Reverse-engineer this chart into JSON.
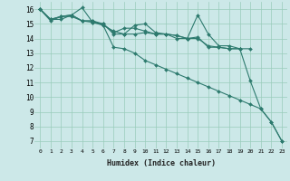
{
  "xlabel": "Humidex (Indice chaleur)",
  "ylabel": "",
  "bg_color": "#cce8e8",
  "line_color": "#2d7a6e",
  "grid_color": "#99ccbb",
  "xlim": [
    -0.5,
    23.5
  ],
  "ylim": [
    6.5,
    16.5
  ],
  "yticks": [
    7,
    8,
    9,
    10,
    11,
    12,
    13,
    14,
    15,
    16
  ],
  "xticks": [
    0,
    1,
    2,
    3,
    4,
    5,
    6,
    7,
    8,
    9,
    10,
    11,
    12,
    13,
    14,
    15,
    16,
    17,
    18,
    19,
    20,
    21,
    22,
    23
  ],
  "series": [
    [
      16.0,
      15.3,
      15.3,
      15.6,
      16.1,
      15.1,
      15.0,
      14.3,
      14.3,
      14.9,
      15.0,
      14.4,
      14.3,
      14.2,
      14.0,
      15.6,
      14.3,
      13.5,
      13.5,
      13.3,
      11.1,
      9.2,
      8.3,
      7.0
    ],
    [
      16.0,
      15.3,
      15.5,
      15.6,
      15.2,
      15.2,
      15.0,
      14.4,
      14.7,
      14.7,
      14.5,
      14.3,
      14.3,
      14.0,
      14.0,
      14.1,
      13.4,
      13.4,
      13.3,
      13.3,
      13.3,
      null,
      null,
      null
    ],
    [
      16.0,
      15.3,
      15.5,
      15.6,
      15.2,
      15.2,
      14.9,
      14.5,
      14.3,
      14.3,
      14.4,
      14.3,
      14.3,
      14.2,
      14.0,
      14.0,
      13.5,
      13.4,
      13.3,
      13.3,
      null,
      null,
      null,
      null
    ],
    [
      16.0,
      15.2,
      15.5,
      15.5,
      15.2,
      15.1,
      14.9,
      13.4,
      13.3,
      13.0,
      12.5,
      12.2,
      11.9,
      11.6,
      11.3,
      11.0,
      10.7,
      10.4,
      10.1,
      9.8,
      9.5,
      9.2,
      8.3,
      7.0
    ]
  ]
}
